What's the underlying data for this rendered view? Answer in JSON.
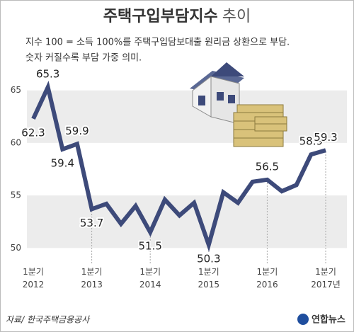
{
  "chart_data": {
    "type": "line",
    "title": "주택구입부담지수",
    "title_suffix": "추이",
    "subtitle": [
      "지수 100 = 소득 100%를 주택구입담보대출 원리금 상환으로 부담.",
      "숫자 커질수록 부담 가중 의미."
    ],
    "source": "자료/ 한국주택금융공사",
    "logo": "연합뉴스",
    "categories": [
      "1분기 2012",
      null,
      null,
      null,
      "1분기 2013",
      null,
      null,
      null,
      "1분기 2014",
      null,
      null,
      null,
      "1분기 2015",
      null,
      null,
      null,
      "1분기 2016",
      null,
      null,
      null,
      "1분기 2017년"
    ],
    "series": [
      {
        "name": "주택구입부담지수",
        "color": "#3d4a7a",
        "values": [
          62.3,
          65.3,
          59.4,
          59.9,
          53.7,
          54.2,
          52.3,
          54.0,
          51.5,
          54.6,
          53.1,
          54.3,
          50.3,
          55.3,
          54.3,
          56.3,
          56.5,
          55.4,
          56.0,
          58.9,
          59.3
        ],
        "value_labels": [
          "62.3",
          "65.3",
          "59.4",
          "59.9",
          "53.7",
          null,
          null,
          null,
          "51.5",
          null,
          null,
          null,
          "50.3",
          null,
          null,
          null,
          "56.5",
          null,
          null,
          "58.9",
          "59.3"
        ]
      }
    ],
    "ylim": [
      48,
      67
    ],
    "yticks": [
      50,
      55,
      60,
      65
    ],
    "bands": true,
    "grid": true
  }
}
